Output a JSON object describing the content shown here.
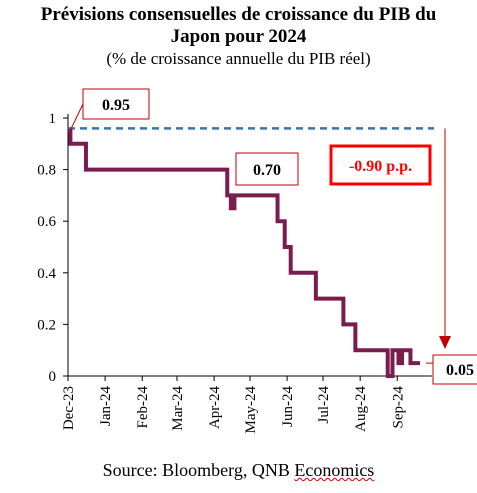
{
  "chart_data": {
    "type": "line",
    "title_line1": "Prévisions consensuelles de croissance du PIB du",
    "title_line2": "Japon pour 2024",
    "subtitle": "(% de croissance annuelle du PIB réel)",
    "source_prefix": "Source: Bloomberg, QNB ",
    "source_suffix": "Economics",
    "ylim": [
      0,
      1
    ],
    "yticks": [
      "0",
      "0.2",
      "0.4",
      "0.6",
      "0.8",
      "1"
    ],
    "xlim": [
      "2023-12-01",
      "2024-09-30"
    ],
    "xticks": [
      {
        "label": "Dec-23",
        "date": "2023-12-01"
      },
      {
        "label": "Jan-24",
        "date": "2024-01-01"
      },
      {
        "label": "Feb-24",
        "date": "2024-02-01"
      },
      {
        "label": "Mar-24",
        "date": "2024-03-01"
      },
      {
        "label": "Apr-24",
        "date": "2024-04-01"
      },
      {
        "label": "May-24",
        "date": "2024-05-01"
      },
      {
        "label": "Jun-24",
        "date": "2024-06-01"
      },
      {
        "label": "Jul-24",
        "date": "2024-07-01"
      },
      {
        "label": "Aug-24",
        "date": "2024-08-01"
      },
      {
        "label": "Sep-24",
        "date": "2024-09-01"
      }
    ],
    "series": [
      {
        "color": "#7b1c4e",
        "points": [
          {
            "x": "2023-12-01",
            "y": 0.95
          },
          {
            "x": "2023-12-03",
            "y": 0.9
          },
          {
            "x": "2023-12-16",
            "y": 0.8
          },
          {
            "x": "2024-04-12",
            "y": 0.7
          },
          {
            "x": "2024-04-15",
            "y": 0.65
          },
          {
            "x": "2024-04-18",
            "y": 0.7
          },
          {
            "x": "2024-05-24",
            "y": 0.6
          },
          {
            "x": "2024-05-30",
            "y": 0.5
          },
          {
            "x": "2024-06-04",
            "y": 0.4
          },
          {
            "x": "2024-06-25",
            "y": 0.3
          },
          {
            "x": "2024-07-18",
            "y": 0.2
          },
          {
            "x": "2024-07-28",
            "y": 0.1
          },
          {
            "x": "2024-08-24",
            "y": 0.0
          },
          {
            "x": "2024-08-28",
            "y": 0.1
          },
          {
            "x": "2024-09-02",
            "y": 0.05
          },
          {
            "x": "2024-09-05",
            "y": 0.1
          },
          {
            "x": "2024-09-12",
            "y": 0.05
          },
          {
            "x": "2024-09-20",
            "y": 0.05
          }
        ]
      }
    ],
    "reference_line": {
      "y": 0.96,
      "color": "#2e75b6",
      "style": "dashed"
    },
    "annotations": {
      "start": {
        "label": "0.95"
      },
      "mid": {
        "label": "0.70"
      },
      "end": {
        "label": "0.05"
      },
      "change": {
        "label": "-0.90 p.p.",
        "color": "#ff0000"
      }
    },
    "grid": false
  }
}
